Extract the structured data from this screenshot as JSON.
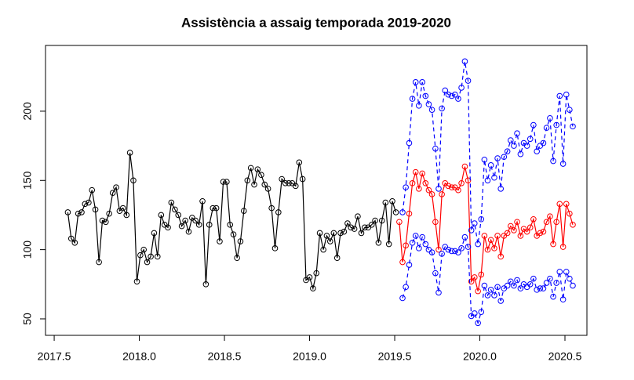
{
  "chart_data": {
    "type": "line",
    "title": "Assistència a assaig temporada 2019-2020",
    "xlim": [
      2017.449,
      2020.629
    ],
    "ylim": [
      38.1,
      247.5
    ],
    "xticks": [
      2017.5,
      {
        "value": 2018,
        "label": "2018.0"
      },
      2018.5,
      {
        "value": 2019,
        "label": "2019.0"
      },
      2019.5,
      {
        "value": 2020,
        "label": "2020.0"
      },
      2020.5
    ],
    "yticks": [
      50,
      100,
      150,
      200
    ],
    "grid": false,
    "markers": "open-circle",
    "series": [
      {
        "color": "#000000",
        "dashed": false,
        "x": [
          2017.58,
          2017.6,
          2017.621,
          2017.641,
          2017.661,
          2017.681,
          2017.702,
          2017.722,
          2017.742,
          2017.763,
          2017.783,
          2017.803,
          2017.823,
          2017.844,
          2017.864,
          2017.884,
          2017.904,
          2017.925,
          2017.945,
          2017.965,
          2017.986,
          2018.006,
          2018.026,
          2018.046,
          2018.067,
          2018.087,
          2018.107,
          2018.128,
          2018.148,
          2018.168,
          2018.188,
          2018.209,
          2018.229,
          2018.249,
          2018.27,
          2018.29,
          2018.31,
          2018.33,
          2018.351,
          2018.371,
          2018.391,
          2018.411,
          2018.432,
          2018.452,
          2018.472,
          2018.493,
          2018.513,
          2018.533,
          2018.553,
          2018.574,
          2018.594,
          2018.614,
          2018.635,
          2018.655,
          2018.675,
          2018.695,
          2018.716,
          2018.736,
          2018.756,
          2018.777,
          2018.797,
          2018.817,
          2018.837,
          2018.858,
          2018.878,
          2018.898,
          2018.918,
          2018.939,
          2018.959,
          2018.979,
          2019.0,
          2019.02,
          2019.04,
          2019.06,
          2019.081,
          2019.101,
          2019.121,
          2019.142,
          2019.162,
          2019.182,
          2019.202,
          2019.223,
          2019.243,
          2019.263,
          2019.283,
          2019.304,
          2019.324,
          2019.344,
          2019.365,
          2019.385,
          2019.405,
          2019.425,
          2019.446,
          2019.466,
          2019.486,
          2019.507
        ],
        "values": [
          127,
          108,
          105,
          126,
          127,
          133,
          134,
          143,
          129,
          91,
          121,
          120,
          126,
          141,
          145,
          128,
          130,
          125,
          170,
          150,
          77,
          96,
          100,
          91,
          95,
          112,
          95,
          125,
          118,
          116,
          134,
          129,
          125,
          117,
          121,
          113,
          123,
          121,
          118,
          135,
          75,
          118,
          130,
          130,
          106,
          149,
          149,
          118,
          111,
          94,
          106,
          128,
          150,
          159,
          147,
          158,
          154,
          147,
          144,
          130,
          101,
          127,
          151,
          148,
          148,
          148,
          146,
          163,
          151,
          78,
          80,
          72,
          83,
          112,
          100,
          110,
          106,
          112,
          94,
          112,
          113,
          119,
          116,
          115,
          124,
          112,
          116,
          116,
          118,
          121,
          105,
          121,
          134,
          104,
          135,
          127
        ]
      },
      {
        "color": "#ff0000",
        "dashed": false,
        "x": [
          2019.527,
          2019.546,
          2019.565,
          2019.585,
          2019.604,
          2019.623,
          2019.642,
          2019.662,
          2019.681,
          2019.7,
          2019.719,
          2019.739,
          2019.758,
          2019.777,
          2019.796,
          2019.815,
          2019.835,
          2019.854,
          2019.873,
          2019.892,
          2019.912,
          2019.931,
          2019.95,
          2019.969,
          2019.989,
          2020.008,
          2020.027,
          2020.046,
          2020.065,
          2020.085,
          2020.104,
          2020.123,
          2020.142,
          2020.162,
          2020.181,
          2020.2,
          2020.219,
          2020.239,
          2020.258,
          2020.277,
          2020.296,
          2020.315,
          2020.335,
          2020.354,
          2020.373,
          2020.392,
          2020.412,
          2020.431,
          2020.45,
          2020.469,
          2020.489,
          2020.508,
          2020.527,
          2020.546
        ],
        "values": [
          120,
          91,
          103,
          126,
          148,
          156,
          144,
          155,
          148,
          143,
          140,
          120,
          100,
          140,
          148,
          146,
          145,
          145,
          143,
          148,
          160,
          150,
          77,
          80,
          70,
          82,
          110,
          100,
          107,
          101,
          110,
          95,
          110,
          112,
          117,
          114,
          120,
          110,
          115,
          113,
          116,
          122,
          110,
          112,
          113,
          120,
          124,
          104,
          120,
          133,
          102,
          133,
          126,
          118
        ]
      },
      {
        "color": "#0000ff",
        "dashed": true,
        "x": [
          2019.527,
          2019.546,
          2019.565,
          2019.585,
          2019.604,
          2019.623,
          2019.642,
          2019.662,
          2019.681,
          2019.7,
          2019.719,
          2019.739,
          2019.758,
          2019.777,
          2019.796,
          2019.815,
          2019.835,
          2019.854,
          2019.873,
          2019.892,
          2019.912,
          2019.931,
          2019.95,
          2019.969,
          2019.989,
          2020.008,
          2020.027,
          2020.046,
          2020.065,
          2020.085,
          2020.104,
          2020.123,
          2020.142,
          2020.162,
          2020.181,
          2020.2,
          2020.219,
          2020.239,
          2020.258,
          2020.277,
          2020.296,
          2020.315,
          2020.335,
          2020.354,
          2020.373,
          2020.392,
          2020.412,
          2020.431,
          2020.45,
          2020.469,
          2020.489,
          2020.508,
          2020.527,
          2020.546
        ],
        "values": [
          null,
          127,
          145,
          177,
          209,
          221,
          204,
          221,
          211,
          205,
          201,
          173,
          144,
          202,
          215,
          212,
          211,
          212,
          209,
          217,
          236,
          222,
          114,
          119,
          104,
          122,
          165,
          150,
          161,
          152,
          166,
          144,
          167,
          171,
          179,
          175,
          184,
          169,
          177,
          175,
          180,
          190,
          171,
          175,
          177,
          188,
          195,
          164,
          190,
          211,
          162,
          212,
          201,
          189
        ]
      },
      {
        "color": "#0000ff",
        "dashed": true,
        "x": [
          2019.527,
          2019.546,
          2019.565,
          2019.585,
          2019.604,
          2019.623,
          2019.642,
          2019.662,
          2019.681,
          2019.7,
          2019.719,
          2019.739,
          2019.758,
          2019.777,
          2019.796,
          2019.815,
          2019.835,
          2019.854,
          2019.873,
          2019.892,
          2019.912,
          2019.931,
          2019.95,
          2019.969,
          2019.989,
          2020.008,
          2020.027,
          2020.046,
          2020.065,
          2020.085,
          2020.104,
          2020.123,
          2020.142,
          2020.162,
          2020.181,
          2020.2,
          2020.219,
          2020.239,
          2020.258,
          2020.277,
          2020.296,
          2020.315,
          2020.335,
          2020.354,
          2020.373,
          2020.392,
          2020.412,
          2020.431,
          2020.45,
          2020.469,
          2020.489,
          2020.508,
          2020.527,
          2020.546
        ],
        "values": [
          null,
          65,
          73,
          89,
          105,
          110,
          101,
          109,
          104,
          100,
          98,
          83,
          69,
          97,
          102,
          100,
          99,
          99,
          98,
          101,
          109,
          102,
          52,
          54,
          47,
          55,
          74,
          67,
          71,
          67,
          73,
          63,
          72,
          74,
          77,
          74,
          78,
          72,
          75,
          73,
          75,
          79,
          71,
          72,
          72,
          76,
          79,
          66,
          76,
          84,
          64,
          84,
          79,
          74
        ]
      }
    ]
  }
}
